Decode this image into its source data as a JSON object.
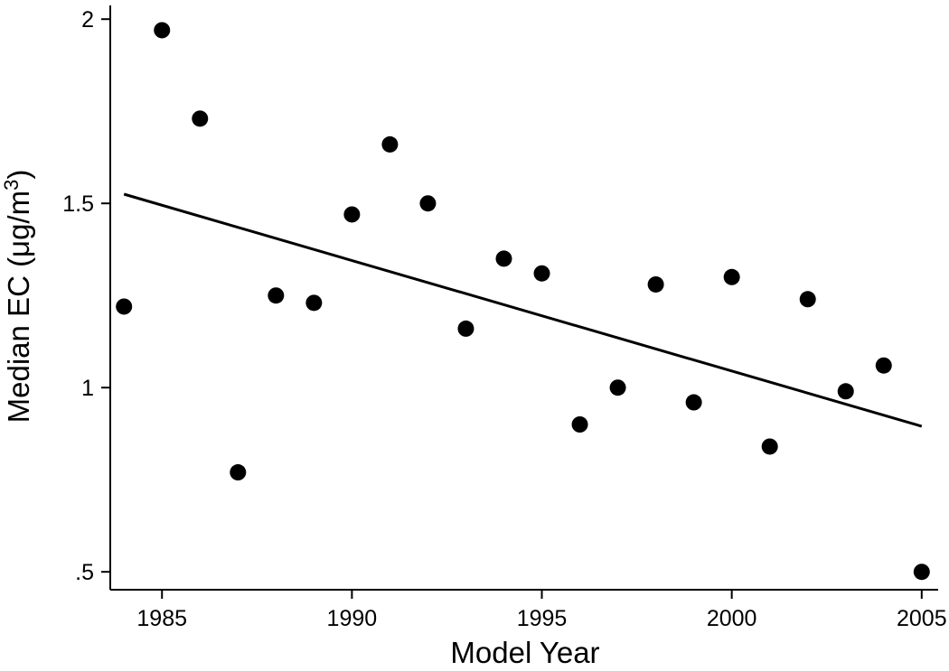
{
  "chart_data": {
    "type": "scatter",
    "title": "",
    "xlabel": "Model Year",
    "ylabel": "Median EC (μg/m",
    "ylabel_sup": "3",
    "ylabel_close": ")",
    "xlim": [
      1983.8,
      2005.5
    ],
    "ylim": [
      0.45,
      2.04
    ],
    "xticks": [
      1985,
      1990,
      1995,
      2000,
      2005
    ],
    "xtick_labels": [
      "1985",
      "1990",
      "1995",
      "2000",
      "2005"
    ],
    "yticks": [
      0.5,
      1,
      1.5,
      2
    ],
    "ytick_labels": [
      ".5",
      "1",
      "1.5",
      "2"
    ],
    "grid": false,
    "legend": "none",
    "color": "#000000",
    "series": [
      {
        "type": "scatter",
        "x": [
          1984,
          1985,
          1986,
          1987,
          1988,
          1989,
          1990,
          1991,
          1992,
          1993,
          1994,
          1995,
          1996,
          1997,
          1998,
          1999,
          2000,
          2001,
          2002,
          2003,
          2004,
          2005
        ],
        "y": [
          1.22,
          1.97,
          1.73,
          0.77,
          1.25,
          1.23,
          1.47,
          1.66,
          1.5,
          1.16,
          1.35,
          1.31,
          0.9,
          1.0,
          1.28,
          0.96,
          1.3,
          0.84,
          1.24,
          0.99,
          1.06,
          0.5
        ]
      },
      {
        "type": "line",
        "x": [
          1984,
          2005
        ],
        "y": [
          1.525,
          0.895
        ]
      }
    ]
  }
}
